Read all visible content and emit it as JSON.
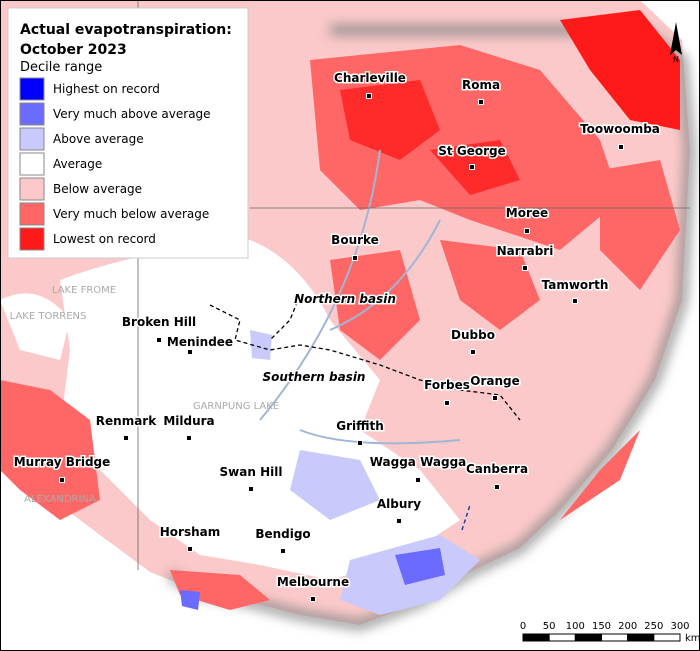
{
  "title_lines": [
    "Actual evapotranspiration:",
    "October 2023"
  ],
  "legend": {
    "heading": "Decile range",
    "items": [
      {
        "label": "Highest on record",
        "color": "#0000ff"
      },
      {
        "label": "Very much above average",
        "color": "#6b6bff"
      },
      {
        "label": "Above average",
        "color": "#c9c9fb"
      },
      {
        "label": "Average",
        "color": "#ffffff"
      },
      {
        "label": "Below average",
        "color": "#fbc9c9"
      },
      {
        "label": "Very much below average",
        "color": "#ff6666"
      },
      {
        "label": "Lowest on record",
        "color": "#ff1a1a"
      }
    ]
  },
  "places": [
    "Charleville",
    "Roma",
    "Toowoomba",
    "St George",
    "Moree",
    "Bourke",
    "Narrabri",
    "Tamworth",
    "Broken Hill",
    "Menindee",
    "Dubbo",
    "Forbes",
    "Orange",
    "Renmark",
    "Mildura",
    "Griffith",
    "Wagga Wagga",
    "Canberra",
    "Murray Bridge",
    "Swan Hill",
    "Albury",
    "Horsham",
    "Bendigo",
    "Melbourne"
  ],
  "basins": [
    "Northern basin",
    "Southern basin"
  ],
  "lakes": [
    "LAKE FROME",
    "LAKE TORRENS",
    "GARNPUNG LAKE",
    "ALEXANDRINA"
  ],
  "scale": {
    "ticks": [
      0,
      50,
      100,
      150,
      200,
      250,
      300
    ],
    "unit": "km"
  },
  "north": "N"
}
